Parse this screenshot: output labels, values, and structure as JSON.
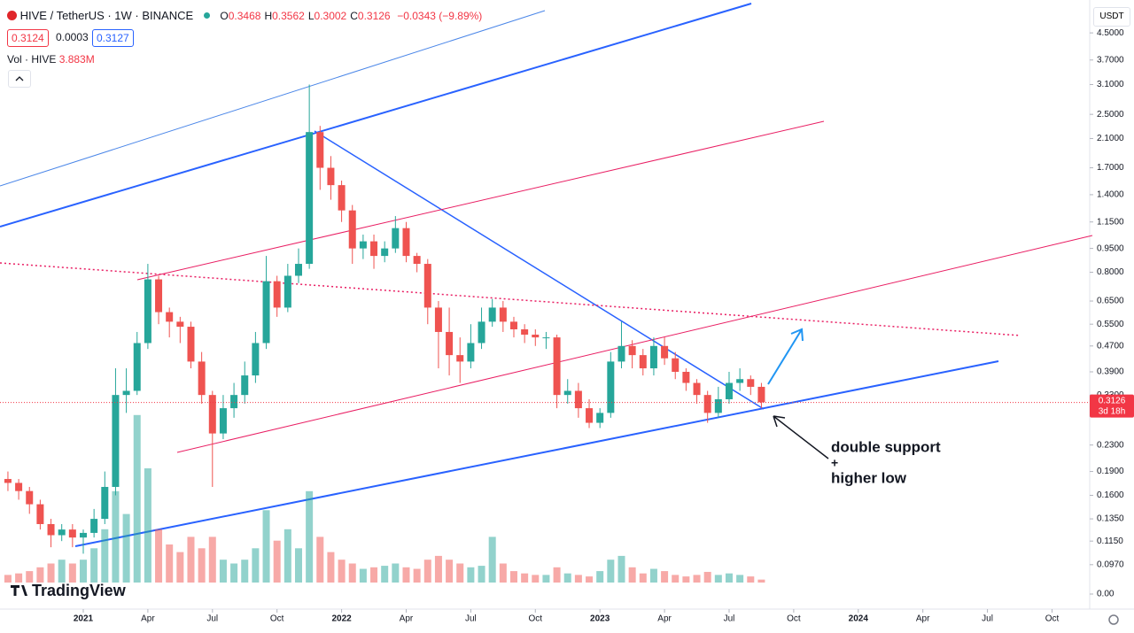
{
  "header": {
    "symbol": "HIVE / TetherUS · 1W · BINANCE",
    "ohlc": [
      {
        "label": "O",
        "value": "0.3468"
      },
      {
        "label": "H",
        "value": "0.3562"
      },
      {
        "label": "L",
        "value": "0.3002"
      },
      {
        "label": "C",
        "value": "0.3126"
      }
    ],
    "change": "−0.0343 (−9.89%)",
    "bid": "0.3124",
    "spread": "0.0003",
    "ask": "0.3127",
    "volume_label": "Vol · HIVE",
    "volume_value": "3.883M",
    "currency": "USDT",
    "logo": "TradingView"
  },
  "annotations": [
    "double support",
    "+",
    "higher low"
  ],
  "chart_data": {
    "type": "candlestick",
    "log_scale": true,
    "grid": false,
    "up_color": "#26a69a",
    "down_color": "#ef5350",
    "x": [
      -3.5,
      -3,
      -2.5,
      -2,
      -1.5,
      -1,
      -0.5,
      0,
      0.5,
      1,
      1.5,
      2,
      2.5,
      3,
      3.5,
      4,
      4.5,
      5,
      5.5,
      6,
      6.5,
      7,
      7.5,
      8,
      8.5,
      9,
      9.5,
      10,
      10.5,
      11,
      11.5,
      12,
      12.5,
      13,
      13.5,
      14,
      14.5,
      15,
      15.5,
      16,
      16.5,
      17,
      17.5,
      18,
      18.5,
      19,
      19.5,
      20,
      20.5,
      21,
      21.5,
      22,
      22.5,
      23,
      23.5,
      24,
      24.5,
      25,
      25.5,
      26,
      26.5,
      27,
      27.5,
      28,
      28.5,
      29,
      29.5,
      30,
      30.5,
      31,
      31.5
    ],
    "open": [
      0.18,
      0.175,
      0.165,
      0.15,
      0.13,
      0.12,
      0.125,
      0.118,
      0.122,
      0.135,
      0.17,
      0.33,
      0.34,
      0.48,
      0.76,
      0.6,
      0.56,
      0.54,
      0.42,
      0.33,
      0.25,
      0.3,
      0.33,
      0.38,
      0.48,
      0.75,
      0.62,
      0.78,
      0.85,
      2.2,
      1.7,
      1.5,
      1.25,
      0.95,
      1.0,
      0.9,
      0.95,
      1.1,
      0.9,
      0.85,
      0.62,
      0.52,
      0.44,
      0.42,
      0.48,
      0.56,
      0.62,
      0.56,
      0.53,
      0.51,
      0.5,
      0.5,
      0.33,
      0.34,
      0.3,
      0.27,
      0.29,
      0.42,
      0.47,
      0.44,
      0.4,
      0.47,
      0.43,
      0.39,
      0.36,
      0.33,
      0.29,
      0.32,
      0.36,
      0.37,
      0.35
    ],
    "high": [
      0.19,
      0.18,
      0.17,
      0.155,
      0.135,
      0.13,
      0.13,
      0.125,
      0.145,
      0.19,
      0.4,
      0.4,
      0.52,
      0.85,
      0.78,
      0.62,
      0.58,
      0.56,
      0.45,
      0.34,
      0.33,
      0.36,
      0.42,
      0.52,
      0.9,
      0.78,
      0.85,
      0.95,
      3.1,
      2.3,
      1.85,
      1.55,
      1.3,
      1.05,
      1.05,
      1.0,
      1.2,
      1.15,
      0.92,
      0.88,
      0.65,
      0.62,
      0.5,
      0.55,
      0.62,
      0.66,
      0.65,
      0.58,
      0.55,
      0.53,
      0.52,
      0.51,
      0.37,
      0.36,
      0.32,
      0.3,
      0.45,
      0.56,
      0.49,
      0.46,
      0.5,
      0.5,
      0.45,
      0.4,
      0.37,
      0.34,
      0.35,
      0.39,
      0.4,
      0.38,
      0.36
    ],
    "low": [
      0.165,
      0.155,
      0.14,
      0.125,
      0.11,
      0.115,
      0.11,
      0.105,
      0.118,
      0.13,
      0.16,
      0.29,
      0.33,
      0.46,
      0.55,
      0.5,
      0.48,
      0.4,
      0.31,
      0.17,
      0.24,
      0.28,
      0.31,
      0.36,
      0.46,
      0.58,
      0.6,
      0.74,
      0.82,
      1.45,
      1.35,
      1.15,
      0.85,
      0.88,
      0.82,
      0.86,
      0.92,
      0.86,
      0.8,
      0.55,
      0.4,
      0.38,
      0.36,
      0.4,
      0.46,
      0.54,
      0.52,
      0.5,
      0.48,
      0.47,
      0.46,
      0.3,
      0.31,
      0.28,
      0.26,
      0.26,
      0.28,
      0.4,
      0.4,
      0.38,
      0.38,
      0.41,
      0.37,
      0.34,
      0.31,
      0.27,
      0.28,
      0.31,
      0.34,
      0.33,
      0.3
    ],
    "close": [
      0.175,
      0.165,
      0.15,
      0.13,
      0.12,
      0.125,
      0.118,
      0.122,
      0.135,
      0.17,
      0.33,
      0.34,
      0.48,
      0.76,
      0.6,
      0.56,
      0.54,
      0.42,
      0.33,
      0.25,
      0.3,
      0.33,
      0.38,
      0.48,
      0.75,
      0.62,
      0.78,
      0.85,
      2.2,
      1.7,
      1.5,
      1.25,
      0.95,
      1.0,
      0.9,
      0.95,
      1.1,
      0.9,
      0.85,
      0.62,
      0.52,
      0.44,
      0.42,
      0.48,
      0.56,
      0.62,
      0.56,
      0.53,
      0.51,
      0.5,
      0.5,
      0.33,
      0.34,
      0.3,
      0.27,
      0.29,
      0.42,
      0.47,
      0.44,
      0.4,
      0.47,
      0.43,
      0.39,
      0.36,
      0.33,
      0.29,
      0.32,
      0.36,
      0.37,
      0.35,
      0.313
    ],
    "volume": [
      10,
      12,
      15,
      20,
      25,
      30,
      25,
      30,
      45,
      70,
      120,
      90,
      220,
      150,
      70,
      50,
      40,
      60,
      45,
      60,
      30,
      25,
      30,
      45,
      95,
      55,
      70,
      45,
      120,
      60,
      40,
      30,
      25,
      18,
      20,
      22,
      25,
      20,
      18,
      30,
      35,
      30,
      25,
      20,
      22,
      60,
      25,
      15,
      12,
      10,
      10,
      20,
      12,
      10,
      8,
      15,
      30,
      35,
      20,
      12,
      18,
      15,
      10,
      8,
      10,
      14,
      10,
      12,
      10,
      8,
      3.883
    ],
    "xlim": [
      -3.868,
      46.75
    ],
    "xticks": [
      {
        "value": 0,
        "label": "2021"
      },
      {
        "value": 3,
        "label": "Apr"
      },
      {
        "value": 6,
        "label": "Jul"
      },
      {
        "value": 9,
        "label": "Oct"
      },
      {
        "value": 12,
        "label": "2022"
      },
      {
        "value": 15,
        "label": "Apr"
      },
      {
        "value": 18,
        "label": "Jul"
      },
      {
        "value": 21,
        "label": "Oct"
      },
      {
        "value": 24,
        "label": "2023"
      },
      {
        "value": 27,
        "label": "Apr"
      },
      {
        "value": 30,
        "label": "Jul"
      },
      {
        "value": 33,
        "label": "Oct"
      },
      {
        "value": 36,
        "label": "2024"
      },
      {
        "value": 39,
        "label": "Apr"
      },
      {
        "value": 42,
        "label": "Jul"
      },
      {
        "value": 45,
        "label": "Oct"
      }
    ],
    "ylim": [
      0.0704,
      4.71
    ],
    "yticks": [
      {
        "value": 4.5,
        "label": "4.5000"
      },
      {
        "value": 3.7,
        "label": "3.7000"
      },
      {
        "value": 3.1,
        "label": "3.1000"
      },
      {
        "value": 2.5,
        "label": "2.5000"
      },
      {
        "value": 2.1,
        "label": "2.1000"
      },
      {
        "value": 1.7,
        "label": "1.7000"
      },
      {
        "value": 1.4,
        "label": "1.4000"
      },
      {
        "value": 1.15,
        "label": "1.1500"
      },
      {
        "value": 0.95,
        "label": "0.9500"
      },
      {
        "value": 0.8,
        "label": "0.8000"
      },
      {
        "value": 0.65,
        "label": "0.6500"
      },
      {
        "value": 0.55,
        "label": "0.5500"
      },
      {
        "value": 0.47,
        "label": "0.4700"
      },
      {
        "value": 0.39,
        "label": "0.3900"
      },
      {
        "value": 0.33,
        "label": "0.3300"
      },
      {
        "value": 0.23,
        "label": "0.2300"
      },
      {
        "value": 0.19,
        "label": "0.1900"
      },
      {
        "value": 0.16,
        "label": "0.1600"
      },
      {
        "value": 0.135,
        "label": "0.1350"
      },
      {
        "value": 0.115,
        "label": "0.1150"
      },
      {
        "value": 0.097,
        "label": "0.0970"
      }
    ],
    "y2lim": [
      0,
      300
    ],
    "y2ticks": [
      {
        "value": 0,
        "label": "0.00"
      }
    ],
    "last_price": {
      "value": 0.3126,
      "label": "0.3126"
    },
    "countdown": "3d 18h"
  }
}
